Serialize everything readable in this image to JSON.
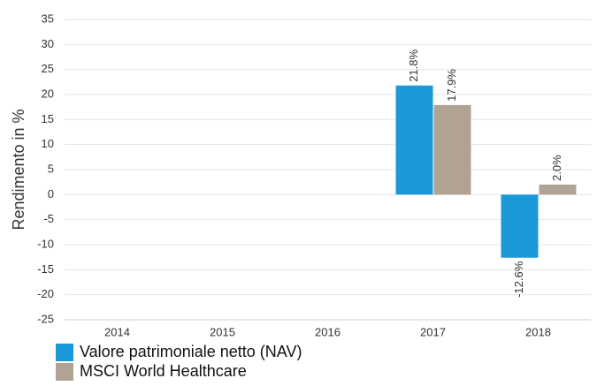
{
  "chart_data": {
    "type": "bar",
    "y_label": "Rendimento in %",
    "categories": [
      "2014",
      "2015",
      "2016",
      "2017",
      "2018"
    ],
    "series": [
      {
        "name": "Valore patrimoniale netto (NAV)",
        "color": "#1a98d8",
        "values": [
          null,
          null,
          null,
          21.8,
          -12.6
        ],
        "value_labels": [
          null,
          null,
          null,
          "21.8%",
          "-12.6%"
        ]
      },
      {
        "name": "MSCI World Healthcare",
        "color": "#b1a394",
        "values": [
          null,
          null,
          null,
          17.9,
          2.0
        ],
        "value_labels": [
          null,
          null,
          null,
          "17.9%",
          "2.0%"
        ]
      }
    ],
    "ylim": [
      -25,
      35
    ],
    "yticks": [
      -25,
      -20,
      -15,
      -10,
      -5,
      0,
      5,
      10,
      15,
      20,
      25,
      30,
      35
    ],
    "grid": true,
    "legend": "bottom-left"
  }
}
